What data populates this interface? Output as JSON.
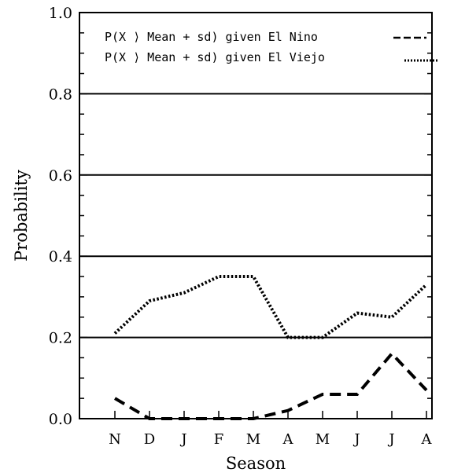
{
  "chart_data": {
    "type": "line",
    "title": "",
    "xlabel": "Season",
    "ylabel": "Probability",
    "categories": [
      "N",
      "D",
      "J",
      "F",
      "M",
      "A",
      "M",
      "J",
      "J",
      "A"
    ],
    "ylim": [
      0.0,
      1.0
    ],
    "y_ticks": [
      0.0,
      0.2,
      0.4,
      0.6,
      0.8,
      1.0
    ],
    "y_tick_labels": [
      "0.0",
      "0.2",
      "0.4",
      "0.6",
      "0.8",
      "1.0"
    ],
    "grid": "horizontal lines at 0.2, 0.4, 0.6, 0.8",
    "legend_position": "top-right",
    "series": [
      {
        "name": "P(X ⟩ Mean + sd)  given El Nino",
        "style": "dashed",
        "values": [
          0.05,
          0.0,
          0.0,
          0.0,
          0.0,
          0.02,
          0.06,
          0.06,
          0.16,
          0.07
        ]
      },
      {
        "name": "P(X ⟩ Mean + sd)  given El Viejo",
        "style": "dotted",
        "values": [
          0.21,
          0.29,
          0.31,
          0.35,
          0.35,
          0.2,
          0.2,
          0.26,
          0.25,
          0.33
        ]
      }
    ]
  }
}
